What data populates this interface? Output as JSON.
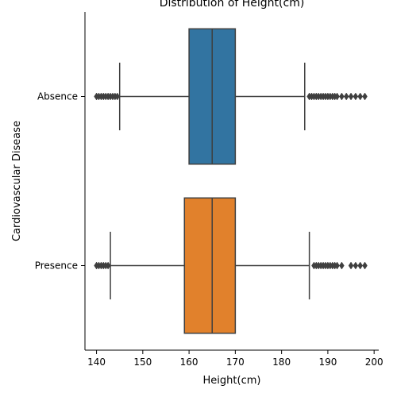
{
  "chart_data": {
    "type": "box",
    "orientation": "horizontal",
    "title": "Distribution of Height(cm)",
    "xlabel": "Height(cm)",
    "ylabel": "Cardiovascular Disease",
    "xlim": [
      137.5,
      201
    ],
    "xticks": [
      140,
      150,
      160,
      170,
      180,
      190,
      200
    ],
    "categories": [
      "Absence",
      "Presence"
    ],
    "colors": [
      "#3274a1",
      "#e1812c"
    ],
    "grid": false,
    "series": [
      {
        "category": "Absence",
        "whisker_low": 145,
        "q1": 160,
        "median": 165,
        "q3": 170,
        "whisker_high": 185,
        "outliers": [
          140,
          140.5,
          141,
          141.5,
          142,
          142.5,
          143,
          143.5,
          144,
          144.5,
          186,
          186.5,
          187,
          187.5,
          188,
          188.5,
          189,
          189.5,
          190,
          190.5,
          191,
          191.5,
          192,
          193,
          194,
          195,
          196,
          197,
          198
        ]
      },
      {
        "category": "Presence",
        "whisker_low": 143,
        "q1": 159,
        "median": 165,
        "q3": 170,
        "whisker_high": 186,
        "outliers": [
          140,
          140.5,
          141,
          141.5,
          142,
          142.5,
          187,
          187.5,
          188,
          188.5,
          189,
          189.5,
          190,
          190.5,
          191,
          191.5,
          192,
          193,
          195,
          196,
          197,
          198
        ]
      }
    ]
  }
}
